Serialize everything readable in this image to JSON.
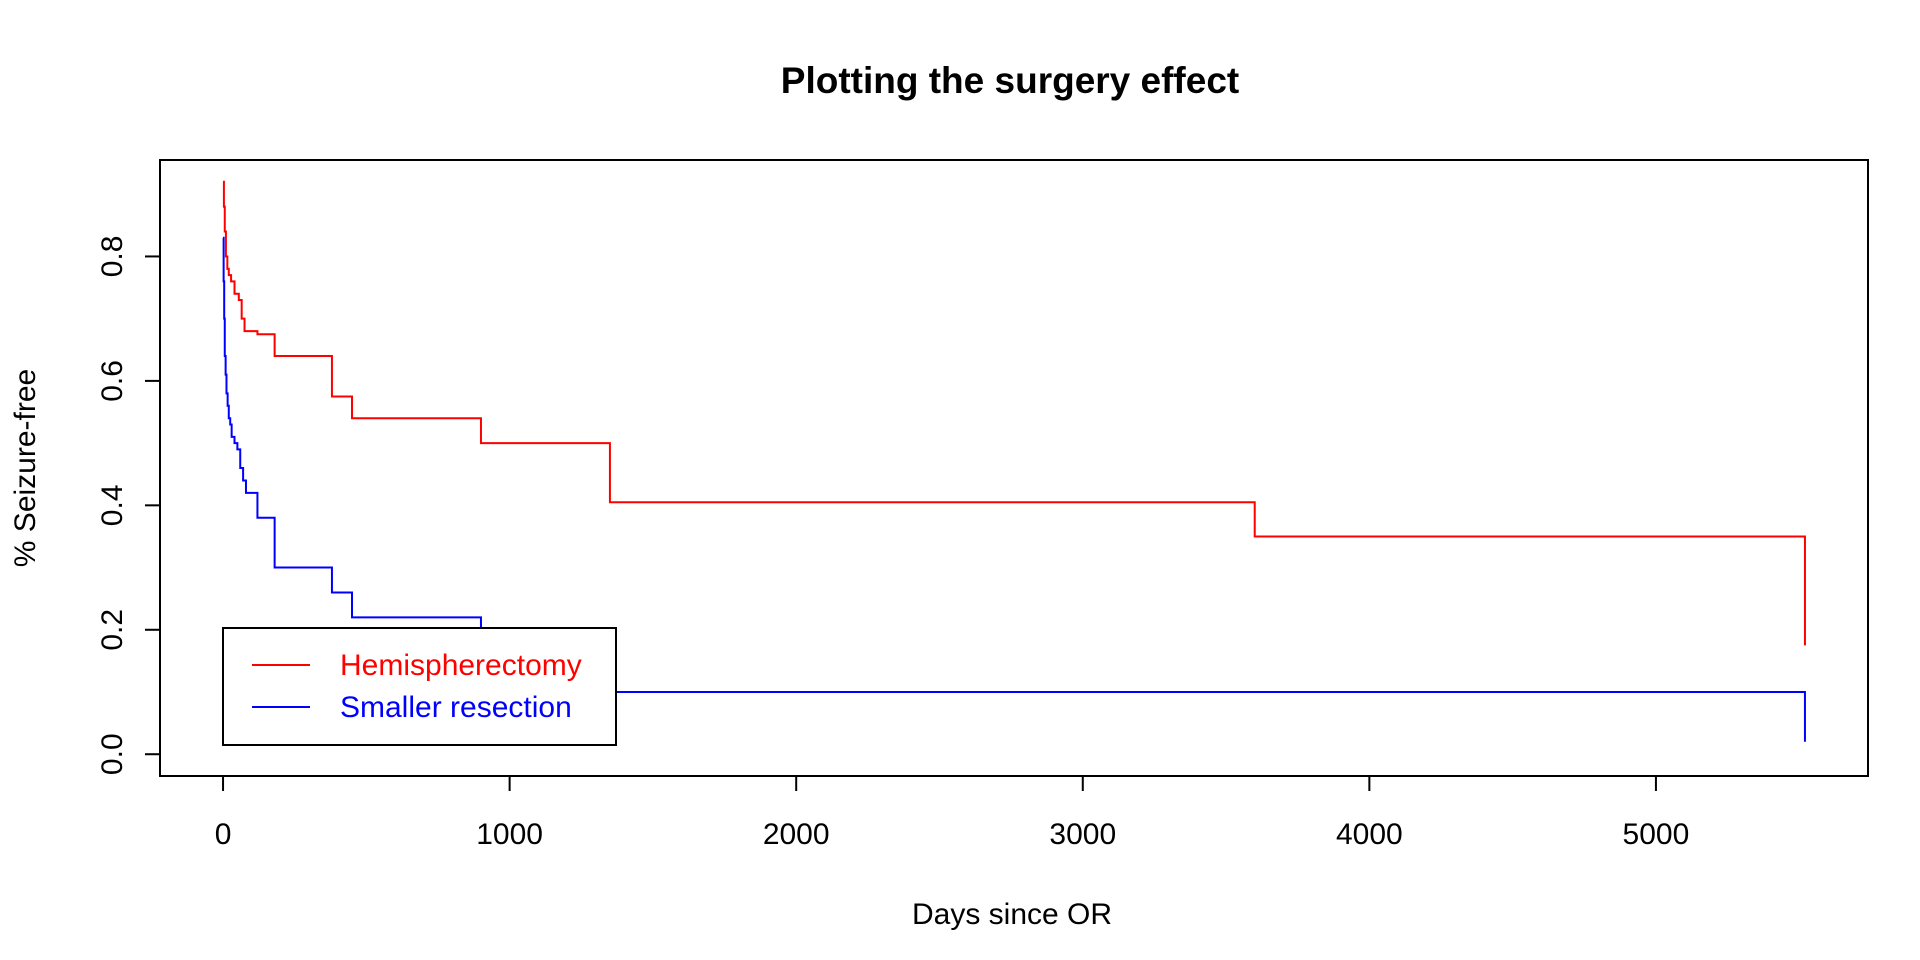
{
  "chart_data": {
    "type": "line",
    "step": true,
    "title": "Plotting the surgery effect",
    "xlabel": "Days since OR",
    "ylabel": "% Seizure-free",
    "xlim": [
      -220,
      5740
    ],
    "ylim": [
      -0.035,
      0.955
    ],
    "xticks": [
      0,
      1000,
      2000,
      3000,
      4000,
      5000
    ],
    "xtick_labels": [
      "0",
      "1000",
      "2000",
      "3000",
      "4000",
      "5000"
    ],
    "yticks": [
      0.0,
      0.2,
      0.4,
      0.6,
      0.8
    ],
    "ytick_labels": [
      "0.0",
      "0.2",
      "0.4",
      "0.6",
      "0.8"
    ],
    "grid": false,
    "legend_position": "bottom-left",
    "series": [
      {
        "name": "Hemispherectomy",
        "color": "#ff0000",
        "x": [
          0,
          3,
          6,
          10,
          15,
          20,
          28,
          40,
          55,
          65,
          75,
          120,
          180,
          380,
          450,
          900,
          1350,
          3600,
          5520
        ],
        "y": [
          0.92,
          0.88,
          0.84,
          0.8,
          0.78,
          0.77,
          0.76,
          0.74,
          0.73,
          0.7,
          0.68,
          0.675,
          0.64,
          0.575,
          0.54,
          0.5,
          0.405,
          0.35,
          0.275
        ],
        "end_x": 5520,
        "end_y": 0.175
      },
      {
        "name": "Smaller resection",
        "color": "#0000ff",
        "x": [
          0,
          2,
          4,
          6,
          9,
          12,
          16,
          20,
          25,
          30,
          40,
          50,
          60,
          70,
          80,
          120,
          180,
          380,
          450,
          900,
          1350,
          3600,
          5520
        ],
        "y": [
          0.83,
          0.76,
          0.7,
          0.64,
          0.61,
          0.58,
          0.56,
          0.54,
          0.53,
          0.51,
          0.5,
          0.49,
          0.46,
          0.44,
          0.42,
          0.38,
          0.3,
          0.26,
          0.22,
          0.18,
          0.1,
          0.1,
          0.06
        ],
        "end_x": 5520,
        "end_y": 0.02
      }
    ]
  }
}
